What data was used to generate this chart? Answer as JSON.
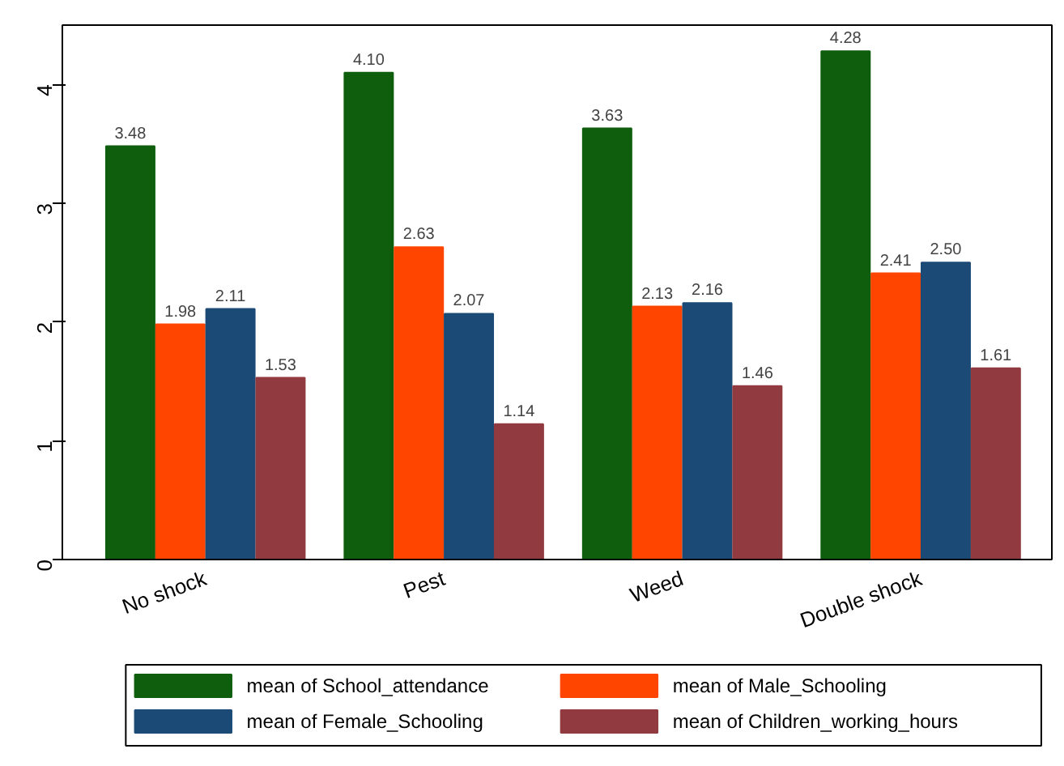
{
  "chart_data": {
    "type": "bar",
    "categories": [
      "No shock",
      "Pest",
      "Weed",
      "Double shock"
    ],
    "series": [
      {
        "name": "mean of School_attendance",
        "color": "#0e5e0e",
        "values": [
          3.48,
          4.1,
          3.63,
          4.28
        ],
        "value_labels": [
          "3.48",
          "4.10",
          "3.63",
          "4.28"
        ]
      },
      {
        "name": "mean of Male_Schooling",
        "color": "#ff4500",
        "values": [
          1.98,
          2.63,
          2.13,
          2.41
        ],
        "value_labels": [
          "1.98",
          "2.63",
          "2.13",
          "2.41"
        ]
      },
      {
        "name": "mean of Female_Schooling",
        "color": "#1a4a75",
        "values": [
          2.11,
          2.07,
          2.16,
          2.5
        ],
        "value_labels": [
          "2.11",
          "2.07",
          "2.16",
          "2.50"
        ]
      },
      {
        "name": "mean of Children_working_hours",
        "color": "#913a40",
        "values": [
          1.53,
          1.14,
          1.46,
          1.61
        ],
        "value_labels": [
          "1.53",
          "1.14",
          "1.46",
          "1.61"
        ]
      }
    ],
    "ylim": [
      0,
      4.5
    ],
    "yticks": [
      0,
      1,
      2,
      3,
      4
    ],
    "legend": "bottom"
  }
}
